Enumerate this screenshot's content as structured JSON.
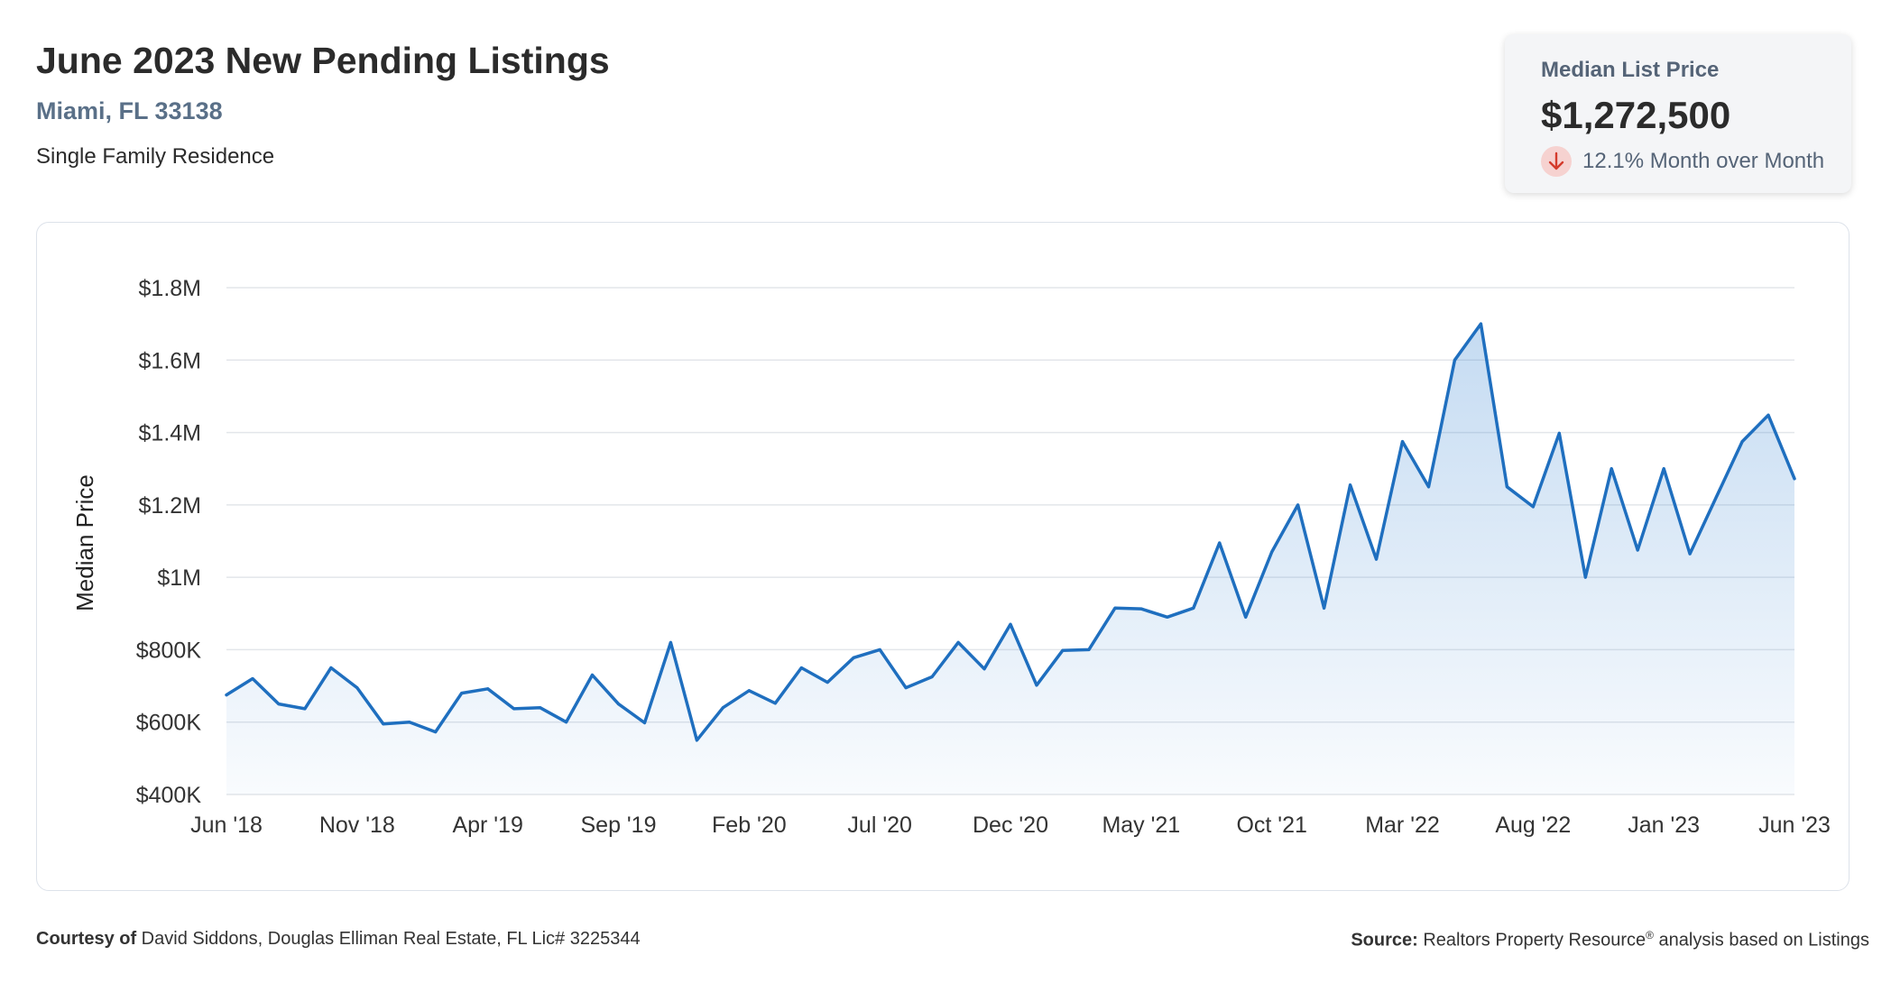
{
  "header": {
    "title": "June 2023 New Pending Listings",
    "location": "Miami, FL 33138",
    "property_type": "Single Family Residence"
  },
  "stat_card": {
    "label": "Median List Price",
    "value": "$1,272,500",
    "change_text": "12.1% Month over Month",
    "direction": "down",
    "icon": "arrow-down-icon",
    "down_color": "#d43b2c"
  },
  "colors": {
    "line": "#1f6fbf",
    "fill": "#2f7fd0",
    "grid": "#e3e6ea",
    "axis_text": "#333333"
  },
  "chart_data": {
    "type": "area",
    "ylabel": "Median Price",
    "xlabel": "",
    "ylim": [
      400000,
      1800000
    ],
    "y_ticks": [
      400000,
      600000,
      800000,
      1000000,
      1200000,
      1400000,
      1600000,
      1800000
    ],
    "y_tick_labels": [
      "$400K",
      "$600K",
      "$800K",
      "$1M",
      "$1.2M",
      "$1.4M",
      "$1.6M",
      "$1.8M"
    ],
    "x_tick_labels": [
      "Jun '18",
      "Nov '18",
      "Apr '19",
      "Sep '19",
      "Feb '20",
      "Jul '20",
      "Dec '20",
      "May '21",
      "Oct '21",
      "Mar '22",
      "Aug '22",
      "Jan '23",
      "Jun '23"
    ],
    "x_tick_every": 5,
    "grid": true,
    "series": [
      {
        "values": [
          675000,
          720000,
          650000,
          637000,
          750000,
          695000,
          595000,
          600000,
          573000,
          680000,
          692000,
          637000,
          640000,
          600000,
          730000,
          650000,
          598000,
          820000,
          550000,
          640000,
          687000,
          652000,
          750000,
          710000,
          778000,
          800000,
          695000,
          725000,
          820000,
          747000,
          870000,
          702000,
          798000,
          800000,
          915000,
          913000,
          890000,
          915000,
          1095000,
          890000,
          1070000,
          1200000,
          915000,
          1255000,
          1050000,
          1375000,
          1250000,
          1600000,
          1700000,
          1250000,
          1195000,
          1398000,
          1000000,
          1300000,
          1075000,
          1300000,
          1065000,
          1220000,
          1375000,
          1448000,
          1272500
        ]
      }
    ]
  },
  "footer": {
    "courtesy_label": "Courtesy of",
    "courtesy_text": " David Siddons, Douglas Elliman Real Estate, FL Lic# 3225344",
    "source_label": "Source:",
    "source_text_before": " Realtors Property Resource",
    "source_mark": "®",
    "source_text_after": " analysis based on Listings"
  }
}
